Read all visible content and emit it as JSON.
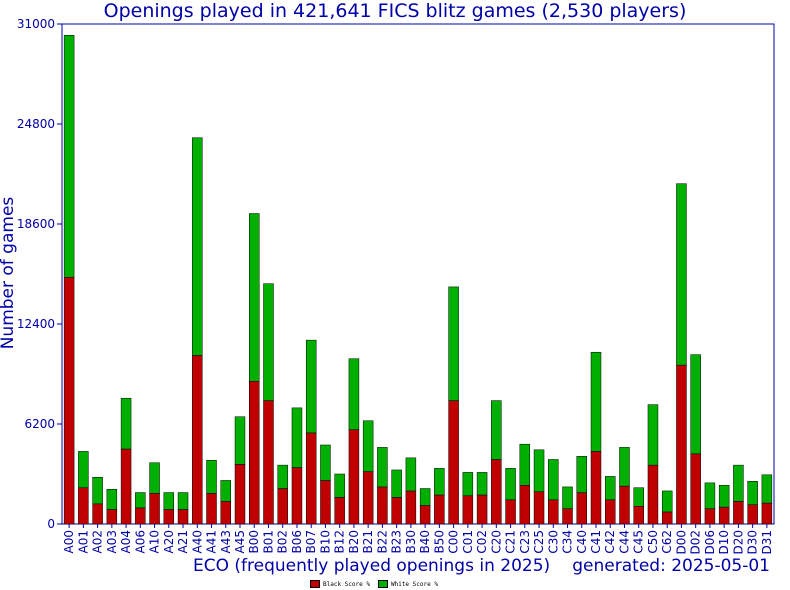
{
  "chart_data": {
    "type": "bar",
    "stacked": true,
    "title": "Openings played in 421,641 FICS blitz games (2,530 players)",
    "xlabel": "ECO (frequently played openings in 2025)",
    "ylabel": "Number of games",
    "note": "generated: 2025-05-01",
    "ylim": [
      0,
      31000
    ],
    "yticks": [
      0,
      6200,
      12400,
      18600,
      24800,
      31000
    ],
    "grid": false,
    "legend_position": "bottom-center",
    "categories": [
      "A00",
      "A01",
      "A02",
      "A03",
      "A04",
      "A06",
      "A10",
      "A20",
      "A21",
      "A40",
      "A41",
      "A43",
      "A45",
      "B00",
      "B01",
      "B02",
      "B06",
      "B07",
      "B10",
      "B12",
      "B20",
      "B21",
      "B22",
      "B23",
      "B30",
      "B40",
      "B50",
      "C00",
      "C01",
      "C02",
      "C20",
      "C21",
      "C23",
      "C25",
      "C30",
      "C34",
      "C40",
      "C41",
      "C42",
      "C44",
      "C45",
      "C50",
      "C62",
      "D00",
      "D02",
      "D06",
      "D10",
      "D20",
      "D30",
      "D31"
    ],
    "series": [
      {
        "name": "Black Score %",
        "color": "#c00000",
        "values": [
          15300,
          2250,
          1250,
          900,
          4650,
          1000,
          1900,
          900,
          900,
          10450,
          1900,
          1400,
          3700,
          8850,
          7650,
          2200,
          3500,
          5650,
          2700,
          1650,
          5850,
          3250,
          2300,
          1650,
          2050,
          1150,
          1800,
          7650,
          1750,
          1800,
          4000,
          1500,
          2400,
          2000,
          1500,
          950,
          1950,
          4500,
          1500,
          2350,
          1100,
          3650,
          750,
          9850,
          4350,
          950,
          1050,
          1400,
          1200,
          1300
        ]
      },
      {
        "name": "White Score %",
        "color": "#00b000",
        "values": [
          15000,
          2250,
          1650,
          1250,
          3150,
          950,
          1900,
          1050,
          1050,
          13500,
          2050,
          1300,
          2950,
          10400,
          7250,
          1450,
          3700,
          5750,
          2200,
          1450,
          4400,
          3150,
          2450,
          1700,
          2050,
          1050,
          1650,
          7050,
          1450,
          1400,
          3650,
          1950,
          2550,
          2600,
          2500,
          1350,
          2250,
          6150,
          1450,
          2400,
          1150,
          3750,
          1300,
          11250,
          6150,
          1600,
          1350,
          2250,
          1450,
          1750
        ]
      }
    ]
  }
}
